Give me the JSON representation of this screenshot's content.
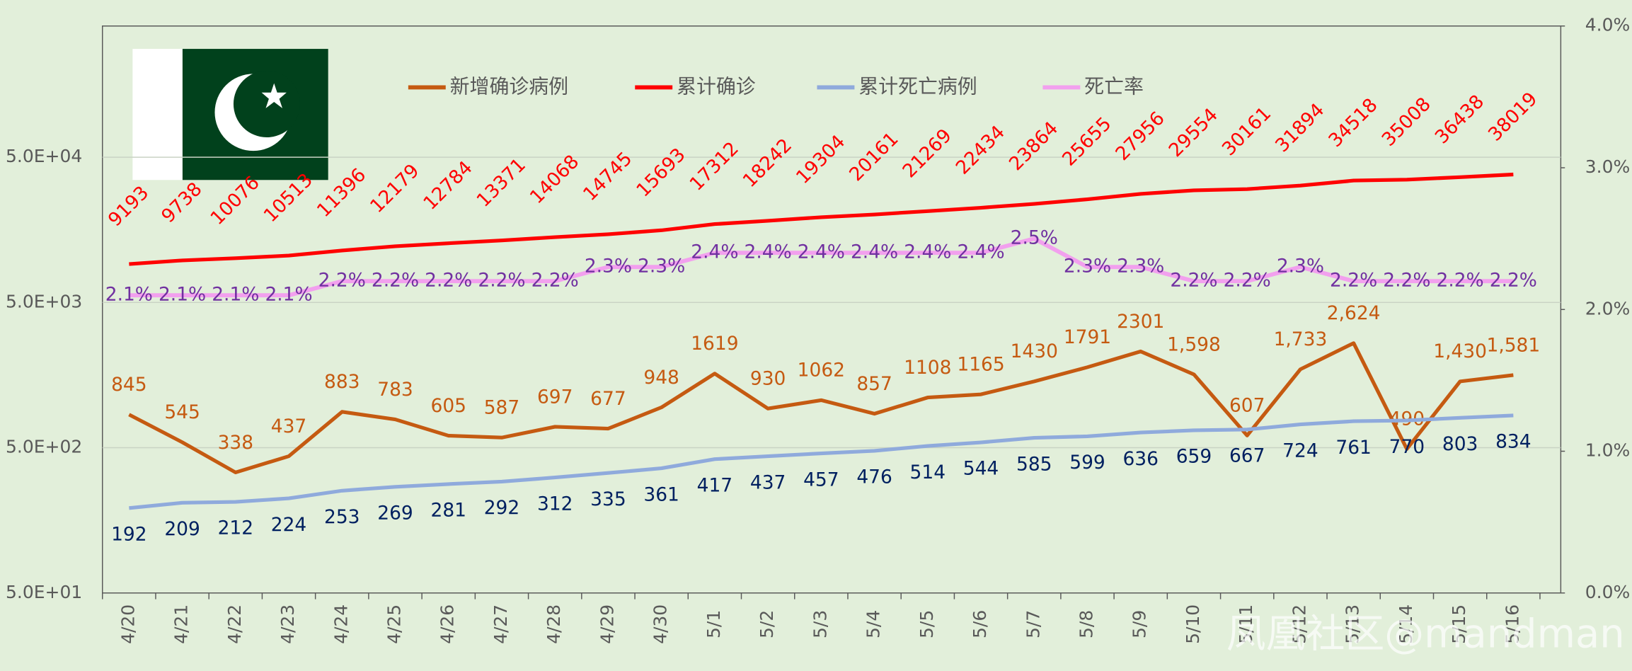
{
  "chart_data": {
    "type": "line",
    "categories": [
      "4/20",
      "4/21",
      "4/22",
      "4/23",
      "4/24",
      "4/25",
      "4/26",
      "4/27",
      "4/28",
      "4/29",
      "4/30",
      "5/1",
      "5/2",
      "5/3",
      "5/4",
      "5/5",
      "5/6",
      "5/7",
      "5/8",
      "5/9",
      "5/10",
      "5/11",
      "5/12",
      "5/13",
      "5/14",
      "5/15",
      "5/16"
    ],
    "series": [
      {
        "name": "新增确诊病例",
        "color": "#c55a11",
        "label_color": "#c55a11",
        "values": [
          845,
          545,
          338,
          437,
          883,
          783,
          605,
          587,
          697,
          677,
          948,
          1619,
          930,
          1062,
          857,
          1108,
          1165,
          1430,
          1791,
          2301,
          1598,
          607,
          1733,
          2624,
          490,
          1430,
          1581
        ],
        "value_labels": [
          "845",
          "545",
          "338",
          "437",
          "883",
          "783",
          "605",
          "587",
          "697",
          "677",
          "948",
          "1619",
          "930",
          "1062",
          "857",
          "1108",
          "1165",
          "1430",
          "1791",
          "2301",
          "1,598",
          "607",
          "1,733",
          "2,624",
          "490",
          "1,430",
          "1,581"
        ]
      },
      {
        "name": "累计确诊",
        "color": "#ff0000",
        "label_color": "#ff0000",
        "values": [
          9193,
          9738,
          10076,
          10513,
          11396,
          12179,
          12784,
          13371,
          14068,
          14745,
          15693,
          17312,
          18242,
          19304,
          20161,
          21269,
          22434,
          23864,
          25655,
          27956,
          29554,
          30161,
          31894,
          34518,
          35008,
          36438,
          38019
        ]
      },
      {
        "name": "累计死亡病例",
        "color": "#8faadc",
        "label_color": "#002060",
        "values": [
          192,
          209,
          212,
          224,
          253,
          269,
          281,
          292,
          312,
          335,
          361,
          417,
          437,
          457,
          476,
          514,
          544,
          585,
          599,
          636,
          659,
          667,
          724,
          761,
          770,
          803,
          834
        ]
      },
      {
        "name": "死亡率",
        "color": "#f2a0ee",
        "label_color": "#7030a0",
        "axis": "y2",
        "values": [
          2.1,
          2.1,
          2.1,
          2.1,
          2.2,
          2.2,
          2.2,
          2.2,
          2.2,
          2.3,
          2.3,
          2.4,
          2.4,
          2.4,
          2.4,
          2.4,
          2.4,
          2.5,
          2.3,
          2.3,
          2.2,
          2.2,
          2.3,
          2.2,
          2.2,
          2.2,
          2.2
        ],
        "value_labels": [
          "2.1%",
          "2.1%",
          "2.1%",
          "2.1%",
          "2.2%",
          "2.2%",
          "2.2%",
          "2.2%",
          "2.2%",
          "2.3%",
          "2.3%",
          "2.4%",
          "2.4%",
          "2.4%",
          "2.4%",
          "2.4%",
          "2.4%",
          "2.5%",
          "2.3%",
          "2.3%",
          "2.2%",
          "2.2%",
          "2.3%",
          "2.2%",
          "2.2%",
          "2.2%",
          "2.2%"
        ]
      }
    ],
    "log_scale": true,
    "ylim": [
      50,
      400000
    ],
    "yticks": [
      {
        "value": 50,
        "label": "5.0E+01"
      },
      {
        "value": 500,
        "label": "5.0E+02"
      },
      {
        "value": 5000,
        "label": "5.0E+03"
      },
      {
        "value": 50000,
        "label": "5.0E+04"
      }
    ],
    "y2lim": [
      0,
      4
    ],
    "y2ticks": [
      {
        "value": 0,
        "label": "0.0%"
      },
      {
        "value": 1,
        "label": "1.0%"
      },
      {
        "value": 2,
        "label": "2.0%"
      },
      {
        "value": 3,
        "label": "3.0%"
      },
      {
        "value": 4,
        "label": "4.0%"
      }
    ],
    "grid": true,
    "legend": "top",
    "watermark": "凤凰社区@mandman"
  }
}
